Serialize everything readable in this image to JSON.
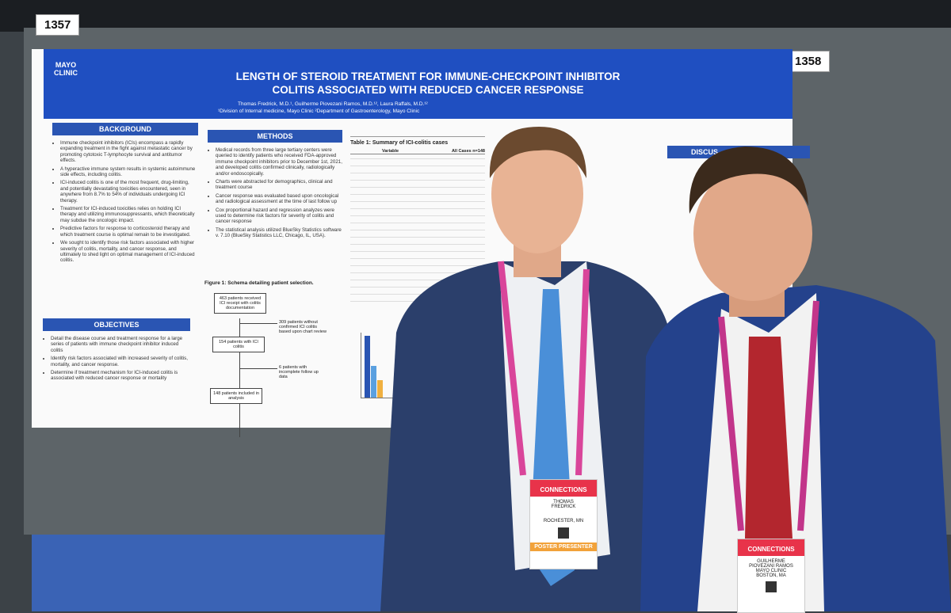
{
  "booth_numbers": [
    "1357",
    "1358"
  ],
  "poster": {
    "org_line1": "MAYO",
    "org_line2": "CLINIC",
    "title_lines": [
      "LENGTH OF STEROID TREATMENT FOR IMMUNE-CHECKPOINT INHIBITOR",
      "COLITIS ASSOCIATED WITH REDUCED CANCER RESPONSE"
    ],
    "authors": "Thomas Fredrick, M.D.¹, Guilherme Piovezani Ramos, M.D.¹², Laura Raffals, M.D.¹²",
    "affiliations": "¹Division of Internal medicine, Mayo Clinic ²Department of Gastroenterology, Mayo Clinic",
    "background": {
      "heading": "BACKGROUND",
      "bullets": [
        "Immune checkpoint inhibitors (ICIs) encompass a rapidly expanding treatment in the fight against metastatic cancer by promoting cytotoxic T-lymphocyte survival and antitumor effects.",
        "A hyperactive immune system results in systemic autoimmune side effects, including colitis.",
        "ICI-induced colitis is one of the most frequent, drug-limiting, and potentially devastating toxicities encountered, seen in anywhere from 8.7% to 54% of individuals undergoing ICI therapy.",
        "Treatment for ICI-induced toxicities relies on holding ICI therapy and utilizing immunosuppressants, which theoretically may subdue the oncologic impact.",
        "Predictive factors for response to corticosteroid therapy and which treatment course is optimal remain to be investigated.",
        "We sought to identify those risk factors associated with higher severity of colitis, mortality, and cancer response, and ultimately to shed light on optimal management of ICI-induced colitis."
      ]
    },
    "objectives": {
      "heading": "OBJECTIVES",
      "bullets": [
        "Detail the disease course and treatment response for a large series of patients with immune checkpoint inhibitor induced colitis",
        "Identify risk factors associated with increased severity of colitis, mortality, and cancer response.",
        "Determine if treatment mechanism for ICI-induced colitis is associated with reduced cancer response or mortality"
      ]
    },
    "methods": {
      "heading": "METHODS",
      "bullets": [
        "Medical records from three large tertiary centers were queried to identify patients who received FDA-approved immune checkpoint inhibitors prior to December 1st, 2021, and developed colitis confirmed clinically, radiologically and/or endoscopically.",
        "Charts were abstracted for demographics, clinical and treatment course",
        "Cancer response was evaluated based upon oncological and radiological assessment at the time of last follow up",
        "Cox proportional hazard and regression analyzes were used to determine risk factors for severity of colitis and cancer response",
        "The statistical analysis utilized BlueSky Statistics software v. 7.10 (BlueSky Statistics LLC, Chicago, IL, USA)."
      ]
    },
    "figure1_title": "Figure 1: Schema detailing patient selection.",
    "flow_nodes": [
      "463 patients received ICI receipt with colitis documentation",
      "309 patients without confirmed ICI colitis based upon chart review",
      "154 patients with ICI colitis",
      "6 patients with incomplete follow up data",
      "148 patients included in analysis"
    ],
    "table_title": "Table 1: Summary of ICI-colitis cases",
    "table_header": [
      "Variable",
      "All Cases n=148"
    ],
    "right_heading": "DISCUS"
  },
  "badges": [
    {
      "banner": "CONNECTIONS",
      "first": "THOMAS",
      "last": "FREDRICK",
      "city": "ROCHESTER, MN",
      "ribbon": "POSTER PRESENTER"
    },
    {
      "banner": "CONNECTIONS",
      "first": "GUILHERME",
      "last": "PIOVEZANI RAMOS",
      "org": "MAYO CLINIC",
      "city": "BOSTON, MA"
    }
  ]
}
